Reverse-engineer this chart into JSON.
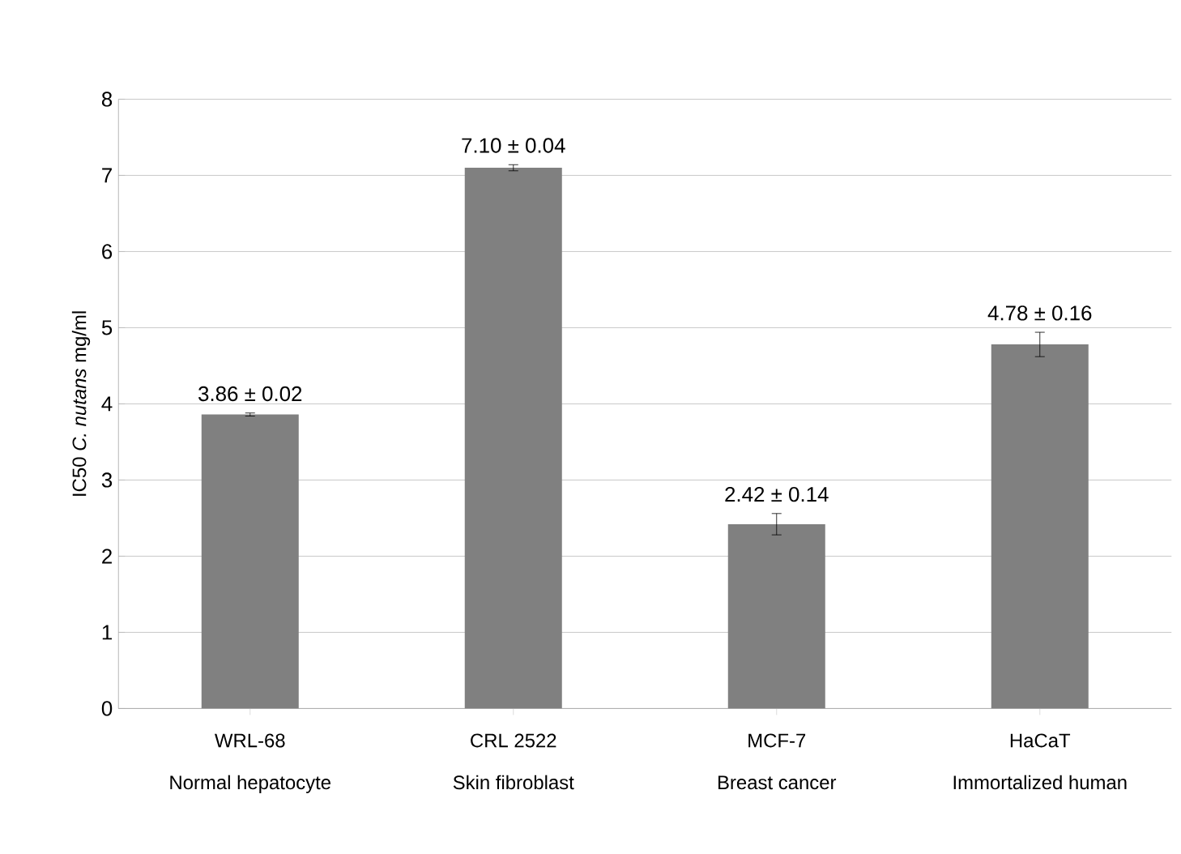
{
  "chart_data": {
    "type": "bar",
    "ylabel": "IC50 *C. nutans* mg/ml",
    "categories": [
      "WRL-68\nNormal hepatocyte",
      "CRL 2522\nSkin fibroblast",
      "MCF-7\nBreast cancer",
      "HaCaT\nImmortalized human"
    ],
    "values": [
      3.86,
      7.1,
      2.42,
      4.78
    ],
    "errors": [
      0.02,
      0.04,
      0.14,
      0.16
    ],
    "value_labels": [
      "3.86 ± 0.02",
      "7.10 ± 0.04",
      "2.42 ± 0.14",
      "4.78 ± 0.16"
    ],
    "color": "#808080",
    "ylim": [
      0,
      8
    ],
    "yticks": [
      0,
      1,
      2,
      3,
      4,
      5,
      6,
      7,
      8
    ],
    "grid": "y"
  }
}
